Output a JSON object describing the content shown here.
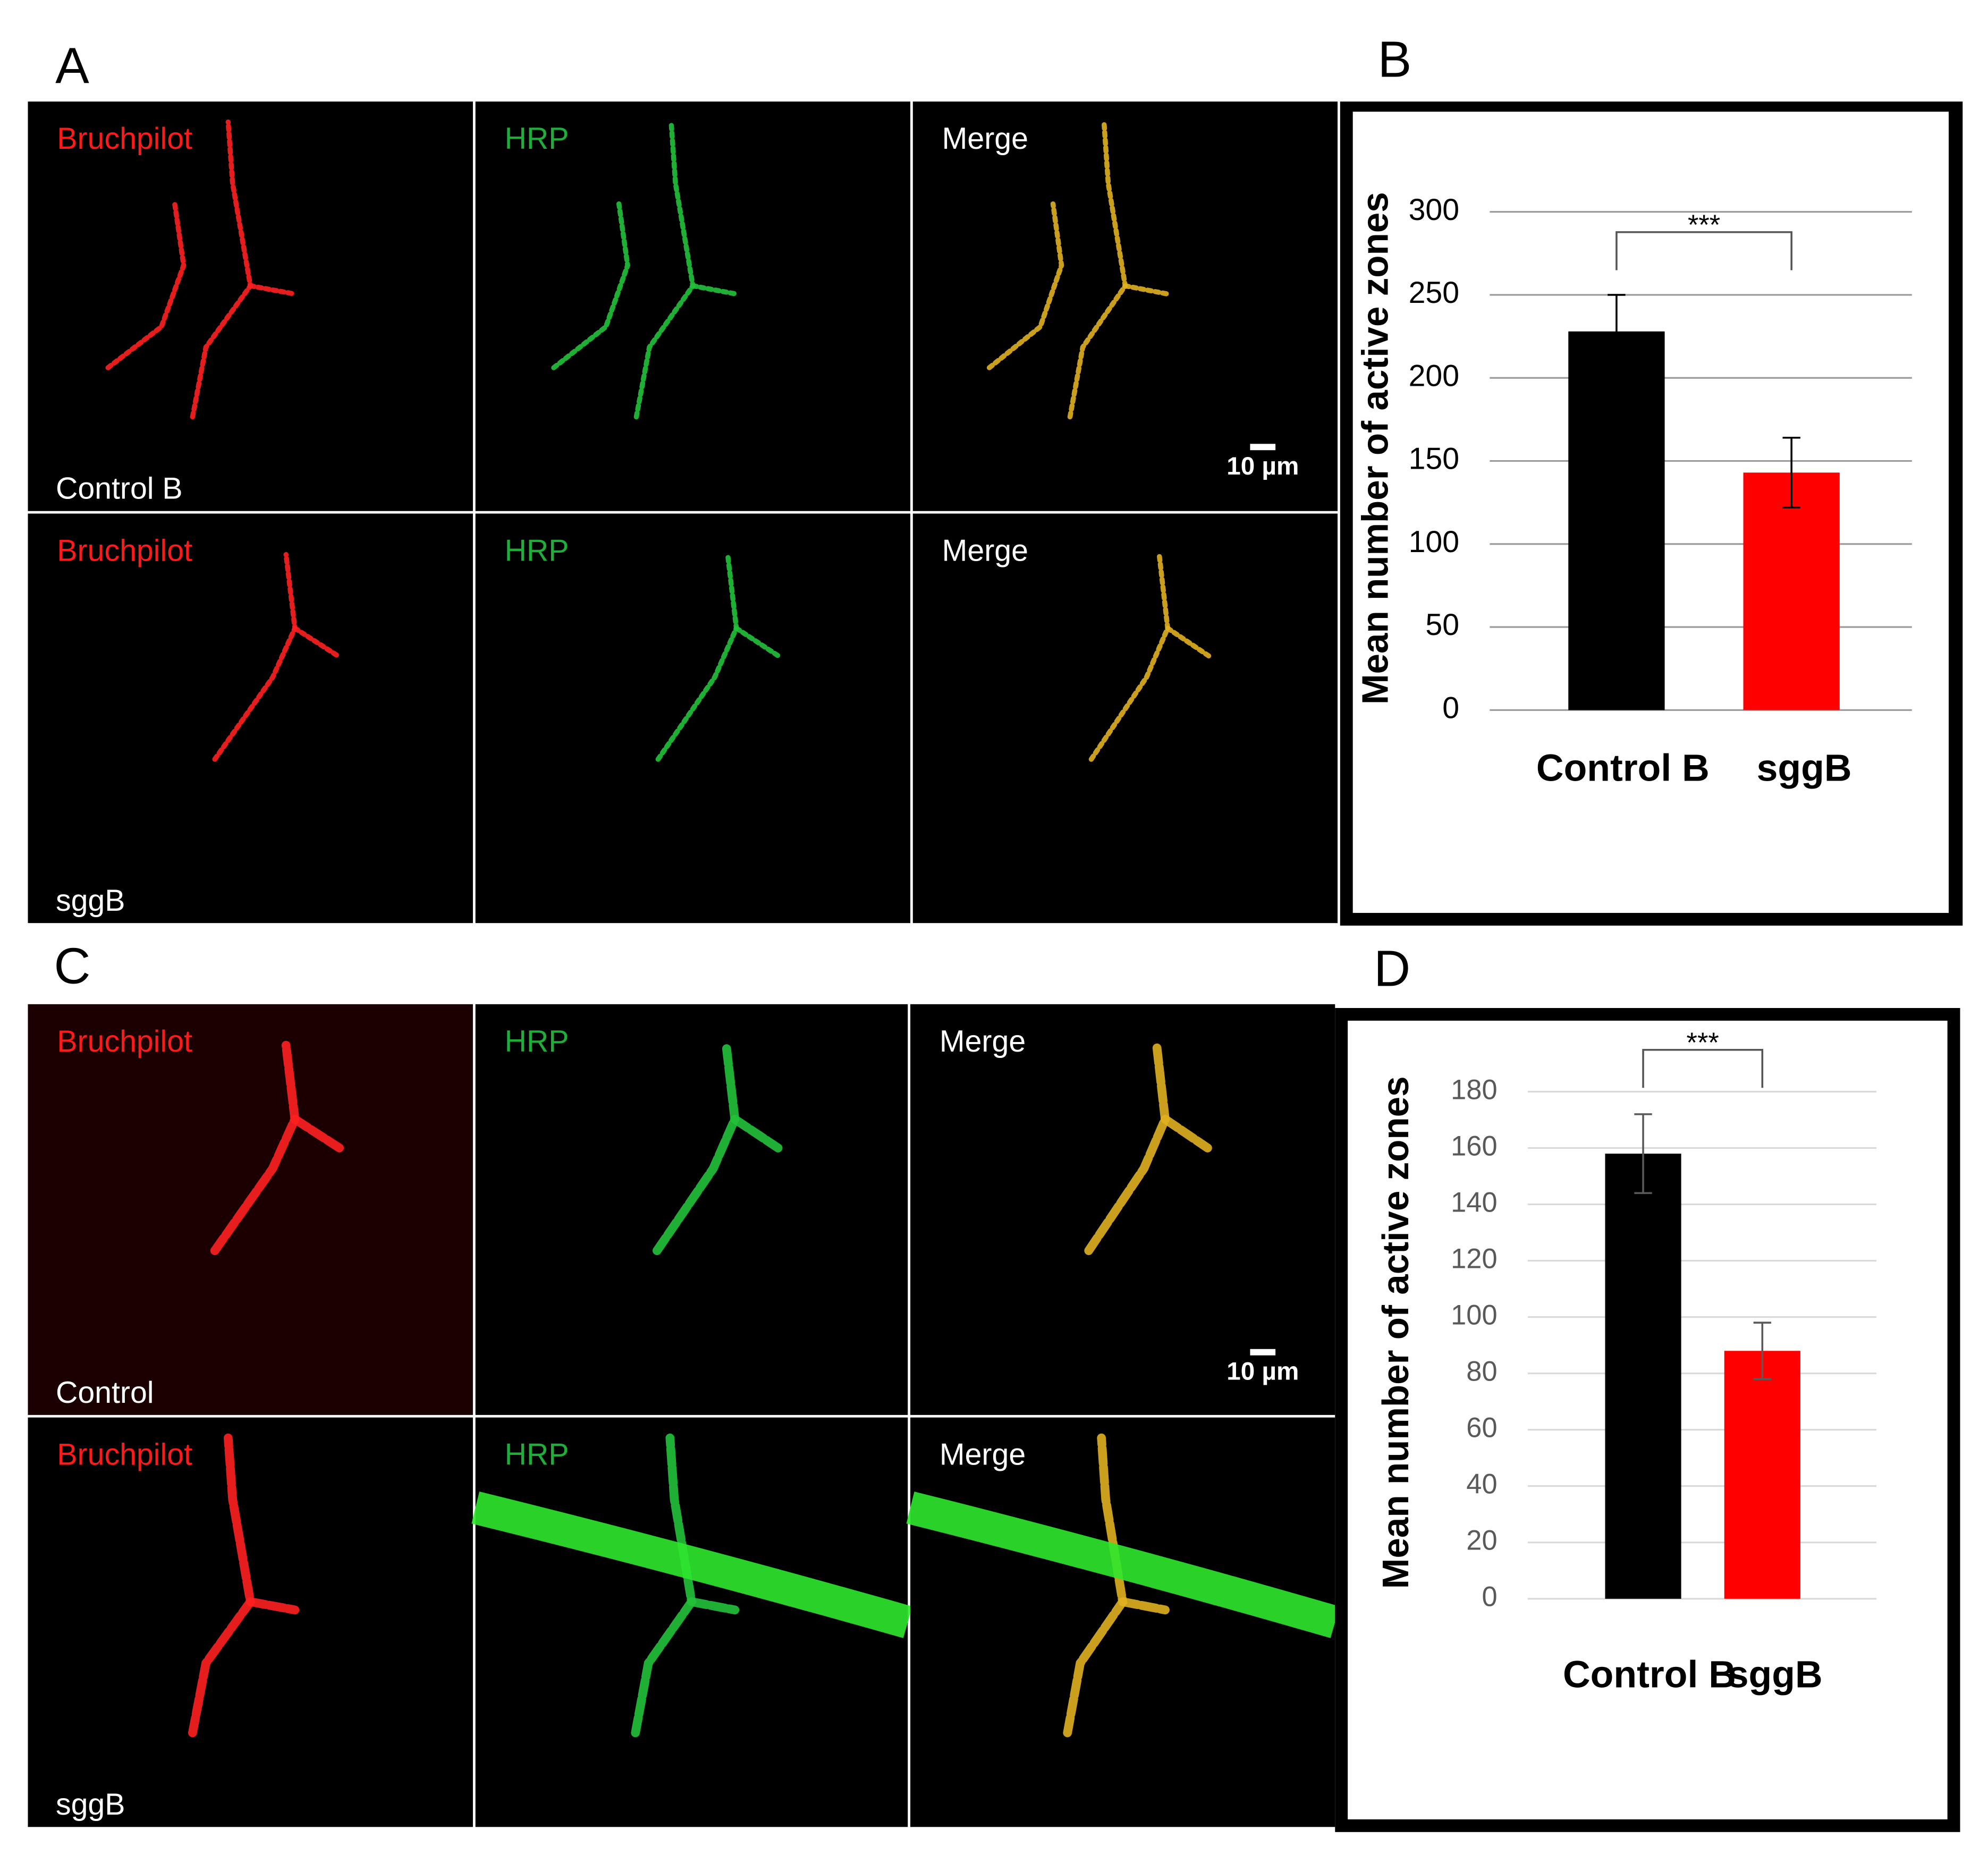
{
  "image_panels": [
    {
      "letter": "A",
      "scale_bar": "10 µm",
      "rows": [
        {
          "condition": "Control B",
          "channels": [
            "Bruchpilot",
            "HRP",
            "Merge"
          ]
        },
        {
          "condition": "sggB",
          "channels": [
            "Bruchpilot",
            "HRP",
            "Merge"
          ]
        }
      ]
    },
    {
      "letter": "C",
      "scale_bar": "10 µm",
      "rows": [
        {
          "condition": "Control",
          "channels": [
            "Bruchpilot",
            "HRP",
            "Merge"
          ]
        },
        {
          "condition": "sggB",
          "channels": [
            "Bruchpilot",
            "HRP",
            "Merge"
          ]
        }
      ]
    }
  ],
  "chart_data": [
    {
      "type": "bar",
      "panel_label": "B",
      "ylabel": "Mean number of active zones",
      "categories": [
        "Control B",
        "sggB"
      ],
      "values": [
        228,
        143
      ],
      "errors": [
        22,
        21
      ],
      "colors": [
        "#000000",
        "#ff0000"
      ],
      "ylim": [
        0,
        300
      ],
      "yticks": [
        0,
        50,
        100,
        150,
        200,
        250,
        300
      ],
      "grid": true,
      "annotation": "***"
    },
    {
      "type": "bar",
      "panel_label": "D",
      "ylabel": "Mean number of active zones",
      "categories": [
        "Control B",
        "sggB"
      ],
      "values": [
        158,
        88
      ],
      "errors": [
        14,
        10
      ],
      "colors": [
        "#000000",
        "#ff0000"
      ],
      "ylim": [
        0,
        180
      ],
      "yticks": [
        0,
        20,
        40,
        60,
        80,
        100,
        120,
        140,
        160,
        180
      ],
      "grid": true,
      "annotation": "***"
    }
  ]
}
